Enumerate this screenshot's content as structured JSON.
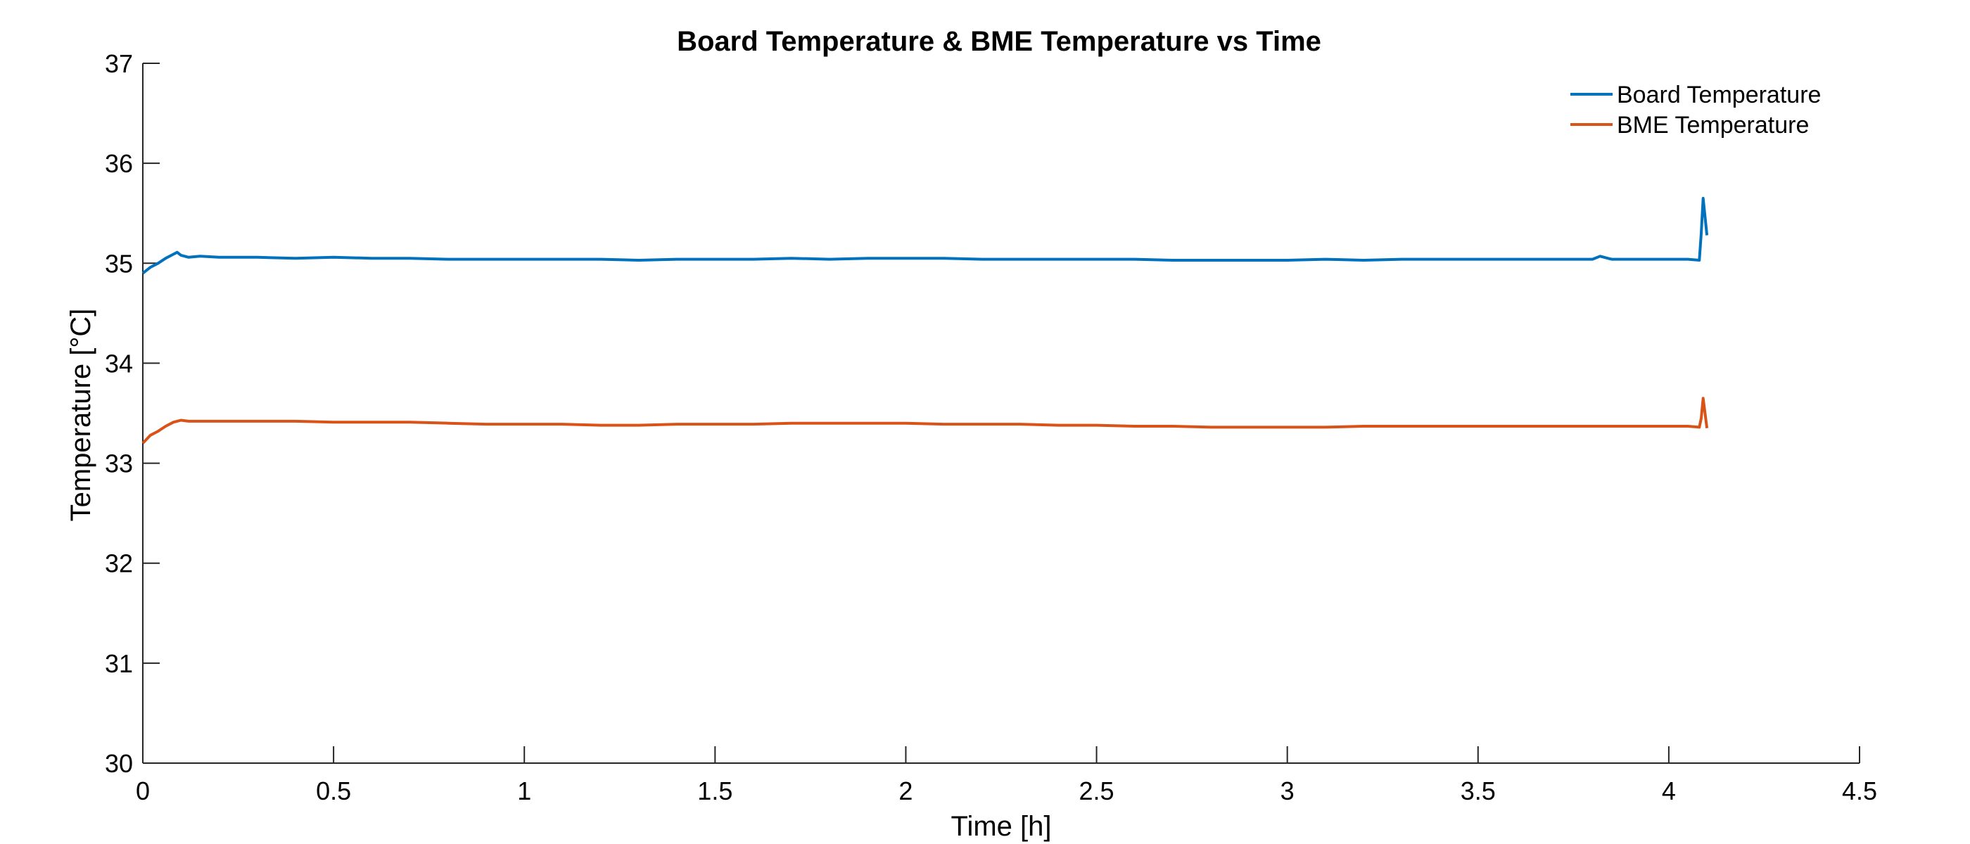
{
  "chart_data": {
    "type": "line",
    "title": "Board Temperature & BME Temperature vs Time",
    "xlabel": "Time [h]",
    "ylabel": "Temperature [°C]",
    "xlim": [
      0,
      4.5
    ],
    "ylim": [
      30,
      37
    ],
    "xticks": [
      0,
      0.5,
      1,
      1.5,
      2,
      2.5,
      3,
      3.5,
      4,
      4.5
    ],
    "xtick_labels": [
      "0",
      "0.5",
      "1",
      "1.5",
      "2",
      "2.5",
      "3",
      "3.5",
      "4",
      "4.5"
    ],
    "yticks": [
      30,
      31,
      32,
      33,
      34,
      35,
      36,
      37
    ],
    "ytick_labels": [
      "30",
      "31",
      "32",
      "33",
      "34",
      "35",
      "36",
      "37"
    ],
    "grid": false,
    "legend_position": "top-right",
    "series": [
      {
        "name": "Board Temperature",
        "color": "#0072BD",
        "x": [
          0,
          0.01,
          0.02,
          0.04,
          0.06,
          0.08,
          0.09,
          0.1,
          0.12,
          0.15,
          0.2,
          0.3,
          0.4,
          0.5,
          0.6,
          0.7,
          0.8,
          0.9,
          1.0,
          1.1,
          1.2,
          1.3,
          1.4,
          1.5,
          1.6,
          1.7,
          1.8,
          1.9,
          2.0,
          2.1,
          2.2,
          2.3,
          2.4,
          2.5,
          2.6,
          2.7,
          2.8,
          2.9,
          3.0,
          3.1,
          3.2,
          3.3,
          3.4,
          3.5,
          3.6,
          3.7,
          3.8,
          3.82,
          3.85,
          3.9,
          4.0,
          4.05,
          4.08,
          4.085,
          4.09,
          4.1
        ],
        "y": [
          34.9,
          34.93,
          34.96,
          35.0,
          35.05,
          35.09,
          35.11,
          35.08,
          35.06,
          35.07,
          35.06,
          35.06,
          35.05,
          35.06,
          35.05,
          35.05,
          35.04,
          35.04,
          35.04,
          35.04,
          35.04,
          35.03,
          35.04,
          35.04,
          35.04,
          35.05,
          35.04,
          35.05,
          35.05,
          35.05,
          35.04,
          35.04,
          35.04,
          35.04,
          35.04,
          35.03,
          35.03,
          35.03,
          35.03,
          35.04,
          35.03,
          35.04,
          35.04,
          35.04,
          35.04,
          35.04,
          35.04,
          35.07,
          35.04,
          35.04,
          35.04,
          35.04,
          35.03,
          35.3,
          35.65,
          35.28
        ]
      },
      {
        "name": "BME Temperature",
        "color": "#D95319",
        "x": [
          0,
          0.01,
          0.02,
          0.04,
          0.06,
          0.08,
          0.1,
          0.12,
          0.15,
          0.2,
          0.3,
          0.4,
          0.5,
          0.6,
          0.7,
          0.8,
          0.9,
          1.0,
          1.1,
          1.2,
          1.3,
          1.4,
          1.5,
          1.6,
          1.7,
          1.8,
          1.9,
          2.0,
          2.1,
          2.2,
          2.3,
          2.4,
          2.5,
          2.6,
          2.7,
          2.8,
          2.9,
          3.0,
          3.1,
          3.2,
          3.3,
          3.4,
          3.5,
          3.6,
          3.7,
          3.8,
          3.9,
          4.0,
          4.05,
          4.08,
          4.085,
          4.09,
          4.1
        ],
        "y": [
          33.2,
          33.24,
          33.28,
          33.32,
          33.37,
          33.41,
          33.43,
          33.42,
          33.42,
          33.42,
          33.42,
          33.42,
          33.41,
          33.41,
          33.41,
          33.4,
          33.39,
          33.39,
          33.39,
          33.38,
          33.38,
          33.39,
          33.39,
          33.39,
          33.4,
          33.4,
          33.4,
          33.4,
          33.39,
          33.39,
          33.39,
          33.38,
          33.38,
          33.37,
          33.37,
          33.36,
          33.36,
          33.36,
          33.36,
          33.37,
          33.37,
          33.37,
          33.37,
          33.37,
          33.37,
          33.37,
          33.37,
          33.37,
          33.37,
          33.36,
          33.45,
          33.65,
          33.35
        ]
      }
    ]
  }
}
